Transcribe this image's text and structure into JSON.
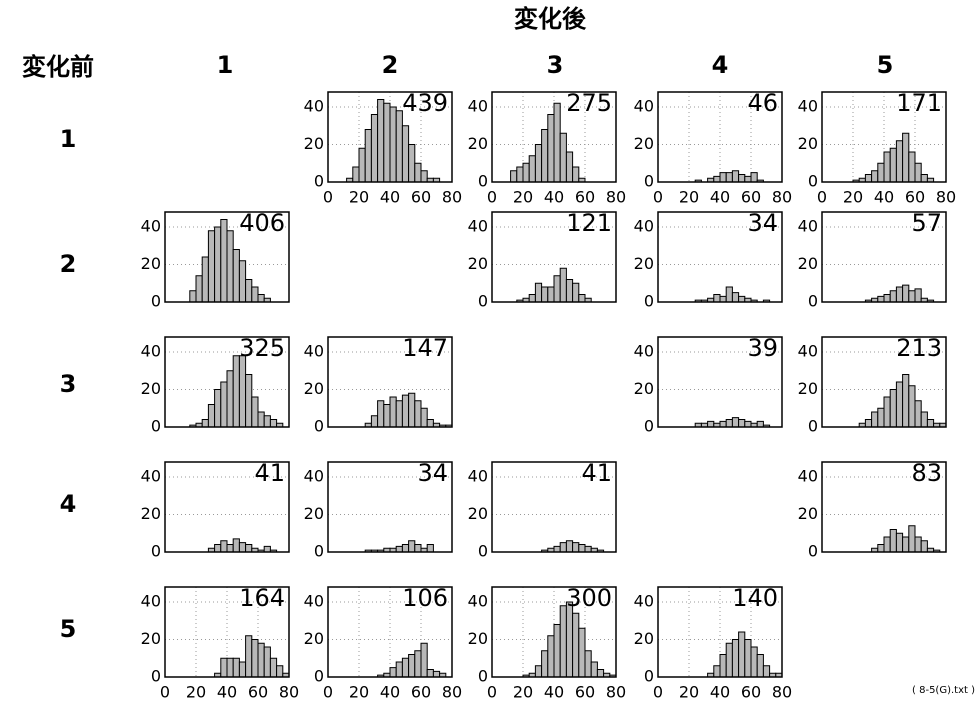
{
  "title": "変化後",
  "row_header": "変化前",
  "column_labels": [
    "1",
    "2",
    "3",
    "4",
    "5"
  ],
  "row_labels": [
    "1",
    "2",
    "3",
    "4",
    "5"
  ],
  "note": "( 8-5(G).txt )",
  "chart_data": [
    {
      "type": "histogram",
      "total": 439,
      "bins": [
        0,
        4,
        8,
        12,
        16,
        20,
        24,
        28,
        32,
        36,
        40,
        44,
        48,
        52,
        56,
        60,
        64,
        68,
        72,
        76,
        80
      ],
      "values": [
        0,
        0,
        0,
        2,
        8,
        18,
        28,
        36,
        44,
        42,
        40,
        38,
        30,
        20,
        10,
        6,
        2,
        2,
        0,
        0
      ],
      "xlim": [
        0,
        80
      ],
      "xticks": [
        0,
        20,
        40,
        60,
        80
      ],
      "ylim": [
        0,
        48
      ],
      "yticks": [
        0,
        20,
        40
      ],
      "color": "#b8b8b8",
      "grid": true
    },
    {
      "type": "histogram",
      "total": 275,
      "bins": [
        0,
        4,
        8,
        12,
        16,
        20,
        24,
        28,
        32,
        36,
        40,
        44,
        48,
        52,
        56,
        60,
        64,
        68,
        72,
        76,
        80
      ],
      "values": [
        0,
        0,
        0,
        6,
        8,
        10,
        14,
        20,
        28,
        36,
        42,
        26,
        16,
        8,
        2,
        0,
        0,
        0,
        0,
        0
      ],
      "xlim": [
        0,
        80
      ],
      "xticks": [
        0,
        20,
        40,
        60,
        80
      ],
      "ylim": [
        0,
        48
      ],
      "yticks": [
        0,
        20,
        40
      ],
      "color": "#b8b8b8",
      "grid": true
    },
    {
      "type": "histogram",
      "total": 46,
      "bins": [
        0,
        4,
        8,
        12,
        16,
        20,
        24,
        28,
        32,
        36,
        40,
        44,
        48,
        52,
        56,
        60,
        64,
        68,
        72,
        76,
        80
      ],
      "values": [
        0,
        0,
        0,
        0,
        0,
        0,
        1,
        0,
        2,
        3,
        5,
        5,
        6,
        4,
        3,
        5,
        1,
        0,
        0,
        0
      ],
      "xlim": [
        0,
        80
      ],
      "xticks": [
        0,
        20,
        40,
        60,
        80
      ],
      "ylim": [
        0,
        48
      ],
      "yticks": [
        0,
        20,
        40
      ],
      "color": "#b8b8b8",
      "grid": true
    },
    {
      "type": "histogram",
      "total": 171,
      "bins": [
        0,
        4,
        8,
        12,
        16,
        20,
        24,
        28,
        32,
        36,
        40,
        44,
        48,
        52,
        56,
        60,
        64,
        68,
        72,
        76,
        80
      ],
      "values": [
        0,
        0,
        0,
        0,
        0,
        1,
        2,
        4,
        6,
        10,
        16,
        18,
        22,
        26,
        16,
        10,
        4,
        2,
        0,
        0
      ],
      "xlim": [
        0,
        80
      ],
      "xticks": [
        0,
        20,
        40,
        60,
        80
      ],
      "ylim": [
        0,
        48
      ],
      "yticks": [
        0,
        20,
        40
      ],
      "color": "#b8b8b8",
      "grid": true
    },
    {
      "type": "histogram",
      "total": 406,
      "bins": [
        0,
        4,
        8,
        12,
        16,
        20,
        24,
        28,
        32,
        36,
        40,
        44,
        48,
        52,
        56,
        60,
        64,
        68,
        72,
        76,
        80
      ],
      "values": [
        0,
        0,
        0,
        0,
        6,
        14,
        24,
        38,
        40,
        44,
        38,
        28,
        22,
        12,
        8,
        4,
        2,
        0,
        0,
        0
      ],
      "xlim": [
        0,
        80
      ],
      "ylim": [
        0,
        48
      ],
      "yticks": [
        0,
        20,
        40
      ],
      "color": "#b8b8b8",
      "grid": true
    },
    {
      "type": "histogram",
      "total": 121,
      "bins": [
        0,
        4,
        8,
        12,
        16,
        20,
        24,
        28,
        32,
        36,
        40,
        44,
        48,
        52,
        56,
        60,
        64,
        68,
        72,
        76,
        80
      ],
      "values": [
        0,
        0,
        0,
        0,
        1,
        2,
        4,
        10,
        8,
        8,
        14,
        18,
        12,
        10,
        4,
        2,
        0,
        0,
        0,
        0
      ],
      "xlim": [
        0,
        80
      ],
      "ylim": [
        0,
        48
      ],
      "yticks": [
        0,
        20,
        40
      ],
      "color": "#b8b8b8",
      "grid": true
    },
    {
      "type": "histogram",
      "total": 34,
      "bins": [
        0,
        4,
        8,
        12,
        16,
        20,
        24,
        28,
        32,
        36,
        40,
        44,
        48,
        52,
        56,
        60,
        64,
        68,
        72,
        76,
        80
      ],
      "values": [
        0,
        0,
        0,
        0,
        0,
        0,
        1,
        1,
        2,
        4,
        3,
        8,
        5,
        3,
        2,
        1,
        0,
        1,
        0,
        0
      ],
      "xlim": [
        0,
        80
      ],
      "ylim": [
        0,
        48
      ],
      "yticks": [
        0,
        20,
        40
      ],
      "color": "#b8b8b8",
      "grid": true
    },
    {
      "type": "histogram",
      "total": 57,
      "bins": [
        0,
        4,
        8,
        12,
        16,
        20,
        24,
        28,
        32,
        36,
        40,
        44,
        48,
        52,
        56,
        60,
        64,
        68,
        72,
        76,
        80
      ],
      "values": [
        0,
        0,
        0,
        0,
        0,
        0,
        0,
        1,
        2,
        3,
        4,
        6,
        8,
        9,
        6,
        7,
        2,
        1,
        0,
        0
      ],
      "xlim": [
        0,
        80
      ],
      "ylim": [
        0,
        48
      ],
      "yticks": [
        0,
        20,
        40
      ],
      "color": "#b8b8b8",
      "grid": true
    },
    {
      "type": "histogram",
      "total": 325,
      "bins": [
        0,
        4,
        8,
        12,
        16,
        20,
        24,
        28,
        32,
        36,
        40,
        44,
        48,
        52,
        56,
        60,
        64,
        68,
        72,
        76,
        80
      ],
      "values": [
        0,
        0,
        0,
        0,
        1,
        2,
        4,
        12,
        20,
        24,
        30,
        38,
        38,
        28,
        16,
        8,
        6,
        4,
        2,
        0
      ],
      "xlim": [
        0,
        80
      ],
      "ylim": [
        0,
        48
      ],
      "yticks": [
        0,
        20,
        40
      ],
      "color": "#b8b8b8",
      "grid": true
    },
    {
      "type": "histogram",
      "total": 147,
      "bins": [
        0,
        4,
        8,
        12,
        16,
        20,
        24,
        28,
        32,
        36,
        40,
        44,
        48,
        52,
        56,
        60,
        64,
        68,
        72,
        76,
        80
      ],
      "values": [
        0,
        0,
        0,
        0,
        0,
        0,
        2,
        6,
        14,
        12,
        16,
        14,
        17,
        18,
        14,
        10,
        4,
        2,
        1,
        1
      ],
      "xlim": [
        0,
        80
      ],
      "ylim": [
        0,
        48
      ],
      "yticks": [
        0,
        20,
        40
      ],
      "color": "#b8b8b8",
      "grid": true
    },
    {
      "type": "histogram",
      "total": 39,
      "bins": [
        0,
        4,
        8,
        12,
        16,
        20,
        24,
        28,
        32,
        36,
        40,
        44,
        48,
        52,
        56,
        60,
        64,
        68,
        72,
        76,
        80
      ],
      "values": [
        0,
        0,
        0,
        0,
        0,
        0,
        2,
        2,
        3,
        2,
        3,
        4,
        5,
        4,
        3,
        2,
        3,
        1,
        0,
        0
      ],
      "xlim": [
        0,
        80
      ],
      "ylim": [
        0,
        48
      ],
      "yticks": [
        0,
        20,
        40
      ],
      "color": "#b8b8b8",
      "grid": true
    },
    {
      "type": "histogram",
      "total": 213,
      "bins": [
        0,
        4,
        8,
        12,
        16,
        20,
        24,
        28,
        32,
        36,
        40,
        44,
        48,
        52,
        56,
        60,
        64,
        68,
        72,
        76,
        80
      ],
      "values": [
        0,
        0,
        0,
        0,
        0,
        0,
        2,
        4,
        8,
        10,
        16,
        20,
        24,
        28,
        22,
        14,
        8,
        4,
        2,
        2
      ],
      "xlim": [
        0,
        80
      ],
      "ylim": [
        0,
        48
      ],
      "yticks": [
        0,
        20,
        40
      ],
      "color": "#b8b8b8",
      "grid": true
    },
    {
      "type": "histogram",
      "total": 41,
      "bins": [
        0,
        4,
        8,
        12,
        16,
        20,
        24,
        28,
        32,
        36,
        40,
        44,
        48,
        52,
        56,
        60,
        64,
        68,
        72,
        76,
        80
      ],
      "values": [
        0,
        0,
        0,
        0,
        0,
        0,
        0,
        2,
        4,
        6,
        4,
        7,
        5,
        4,
        2,
        1,
        3,
        1,
        0,
        0
      ],
      "xlim": [
        0,
        80
      ],
      "ylim": [
        0,
        48
      ],
      "yticks": [
        0,
        20,
        40
      ],
      "color": "#b8b8b8",
      "grid": true
    },
    {
      "type": "histogram",
      "total": 34,
      "bins": [
        0,
        4,
        8,
        12,
        16,
        20,
        24,
        28,
        32,
        36,
        40,
        44,
        48,
        52,
        56,
        60,
        64,
        68,
        72,
        76,
        80
      ],
      "values": [
        0,
        0,
        0,
        0,
        0,
        0,
        1,
        1,
        1,
        2,
        2,
        3,
        4,
        6,
        4,
        2,
        4,
        0,
        0,
        0
      ],
      "xlim": [
        0,
        80
      ],
      "ylim": [
        0,
        48
      ],
      "yticks": [
        0,
        20,
        40
      ],
      "color": "#b8b8b8",
      "grid": true
    },
    {
      "type": "histogram",
      "total": 41,
      "bins": [
        0,
        4,
        8,
        12,
        16,
        20,
        24,
        28,
        32,
        36,
        40,
        44,
        48,
        52,
        56,
        60,
        64,
        68,
        72,
        76,
        80
      ],
      "values": [
        0,
        0,
        0,
        0,
        0,
        0,
        0,
        0,
        1,
        2,
        3,
        5,
        6,
        5,
        4,
        3,
        2,
        1,
        0,
        0
      ],
      "xlim": [
        0,
        80
      ],
      "ylim": [
        0,
        48
      ],
      "yticks": [
        0,
        20,
        40
      ],
      "color": "#b8b8b8",
      "grid": true
    },
    {
      "type": "histogram",
      "total": 83,
      "bins": [
        0,
        4,
        8,
        12,
        16,
        20,
        24,
        28,
        32,
        36,
        40,
        44,
        48,
        52,
        56,
        60,
        64,
        68,
        72,
        76,
        80
      ],
      "values": [
        0,
        0,
        0,
        0,
        0,
        0,
        0,
        0,
        2,
        4,
        8,
        12,
        10,
        8,
        14,
        8,
        6,
        2,
        1,
        0
      ],
      "xlim": [
        0,
        80
      ],
      "ylim": [
        0,
        48
      ],
      "yticks": [
        0,
        20,
        40
      ],
      "color": "#b8b8b8",
      "grid": true
    },
    {
      "type": "histogram",
      "total": 164,
      "bins": [
        0,
        4,
        8,
        12,
        16,
        20,
        24,
        28,
        32,
        36,
        40,
        44,
        48,
        52,
        56,
        60,
        64,
        68,
        72,
        76,
        80
      ],
      "values": [
        0,
        0,
        0,
        0,
        0,
        0,
        0,
        0,
        2,
        10,
        10,
        10,
        8,
        22,
        20,
        18,
        16,
        10,
        6,
        2
      ],
      "xlim": [
        0,
        80
      ],
      "xticks": [
        0,
        20,
        40,
        60,
        80
      ],
      "ylim": [
        0,
        48
      ],
      "yticks": [
        0,
        20,
        40
      ],
      "color": "#b8b8b8",
      "grid": true
    },
    {
      "type": "histogram",
      "total": 106,
      "bins": [
        0,
        4,
        8,
        12,
        16,
        20,
        24,
        28,
        32,
        36,
        40,
        44,
        48,
        52,
        56,
        60,
        64,
        68,
        72,
        76,
        80
      ],
      "values": [
        0,
        0,
        0,
        0,
        0,
        0,
        0,
        0,
        1,
        2,
        5,
        8,
        10,
        12,
        14,
        18,
        4,
        3,
        2,
        0
      ],
      "xlim": [
        0,
        80
      ],
      "xticks": [
        0,
        20,
        40,
        60,
        80
      ],
      "ylim": [
        0,
        48
      ],
      "yticks": [
        0,
        20,
        40
      ],
      "color": "#b8b8b8",
      "grid": true
    },
    {
      "type": "histogram",
      "total": 300,
      "bins": [
        0,
        4,
        8,
        12,
        16,
        20,
        24,
        28,
        32,
        36,
        40,
        44,
        48,
        52,
        56,
        60,
        64,
        68,
        72,
        76,
        80
      ],
      "values": [
        0,
        0,
        0,
        0,
        0,
        1,
        2,
        6,
        14,
        22,
        28,
        38,
        40,
        34,
        26,
        14,
        8,
        4,
        2,
        1
      ],
      "xlim": [
        0,
        80
      ],
      "xticks": [
        0,
        20,
        40,
        60,
        80
      ],
      "ylim": [
        0,
        48
      ],
      "yticks": [
        0,
        20,
        40
      ],
      "color": "#b8b8b8",
      "grid": true
    },
    {
      "type": "histogram",
      "total": 140,
      "bins": [
        0,
        4,
        8,
        12,
        16,
        20,
        24,
        28,
        32,
        36,
        40,
        44,
        48,
        52,
        56,
        60,
        64,
        68,
        72,
        76,
        80
      ],
      "values": [
        0,
        0,
        0,
        0,
        0,
        0,
        0,
        0,
        2,
        6,
        12,
        18,
        20,
        24,
        20,
        16,
        12,
        6,
        2,
        2
      ],
      "xlim": [
        0,
        80
      ],
      "xticks": [
        0,
        20,
        40,
        60,
        80
      ],
      "ylim": [
        0,
        48
      ],
      "yticks": [
        0,
        20,
        40
      ],
      "color": "#b8b8b8",
      "grid": true
    }
  ]
}
